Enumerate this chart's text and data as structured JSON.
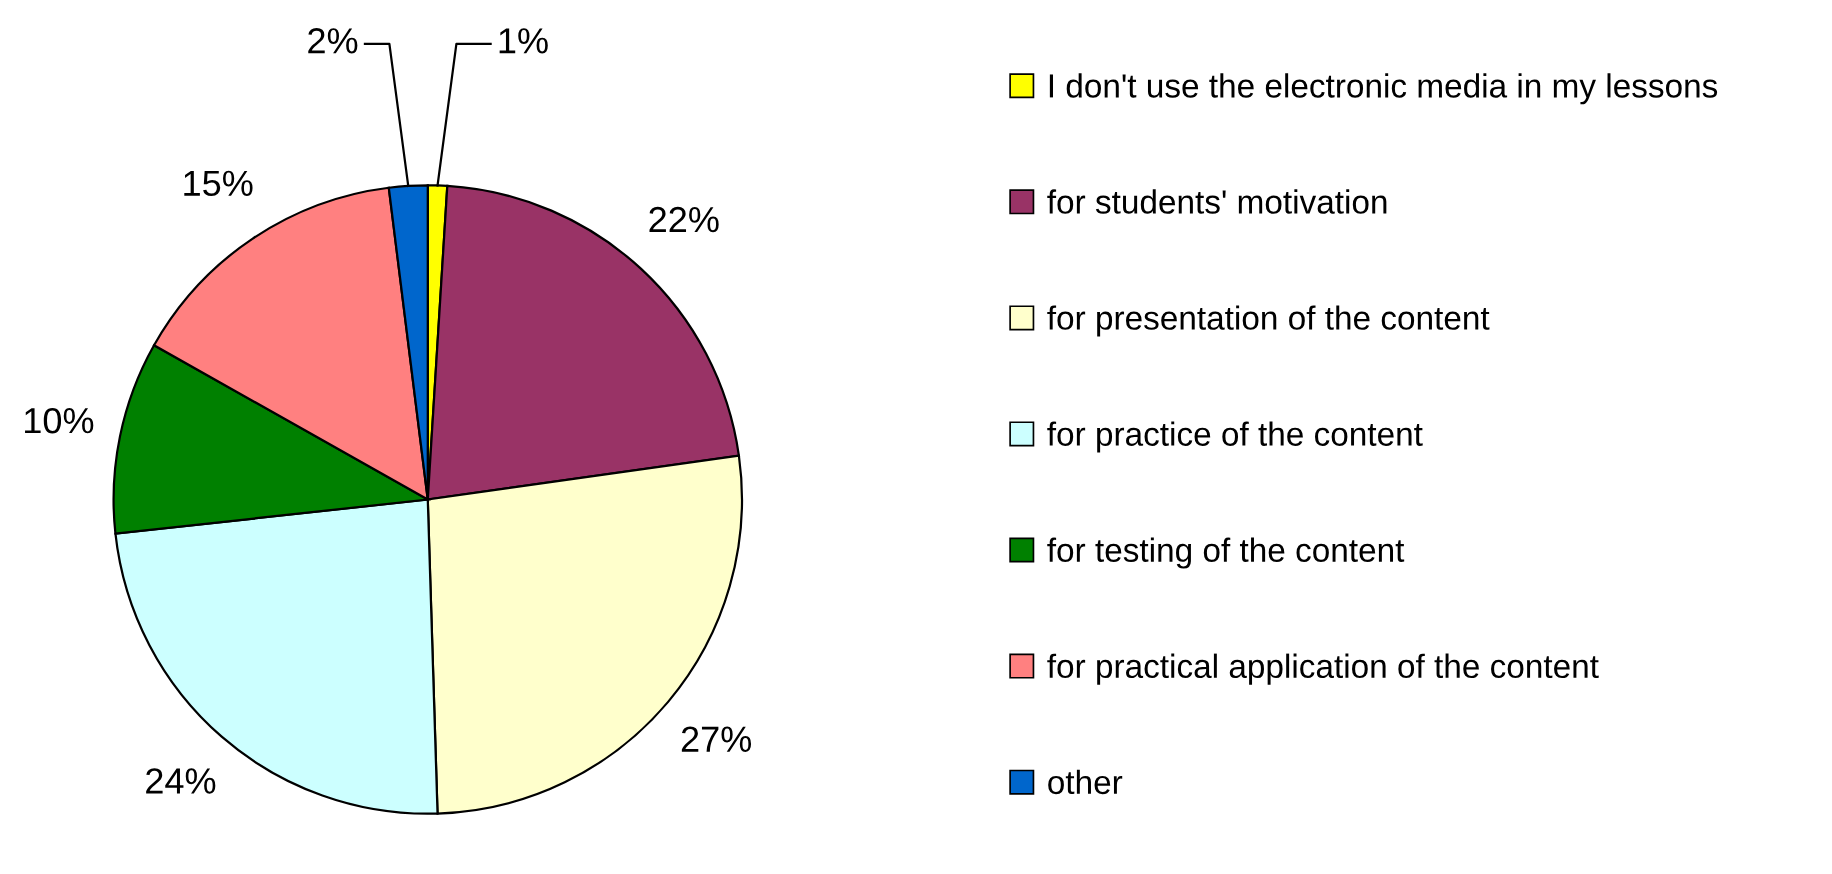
{
  "chart_data": {
    "type": "pie",
    "categories": [
      "I don't use the electronic media in my lessons",
      "for students' motivation",
      "for presentation of the content",
      "for practice of the content",
      "for testing of the content",
      "for practical application of the content",
      "other"
    ],
    "values": [
      1,
      22,
      27,
      24,
      10,
      15,
      2
    ],
    "colors": [
      "#ffff00",
      "#993366",
      "#ffffcc",
      "#ccffff",
      "#008000",
      "#ff8080",
      "#0066cc"
    ],
    "value_labels": [
      "1%",
      "22%",
      "27%",
      "24%",
      "10%",
      "15%",
      "2%"
    ],
    "legend": "right"
  }
}
